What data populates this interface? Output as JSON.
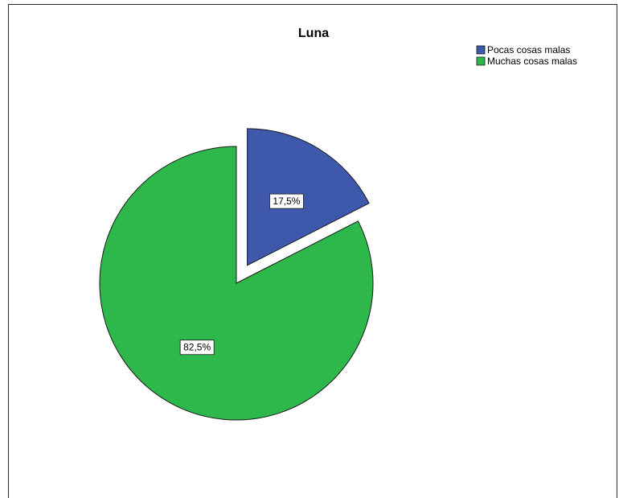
{
  "chart_data": {
    "type": "pie",
    "title": "Luna",
    "legend_position": "top-right",
    "slices": [
      {
        "label": "Pocas cosas malas",
        "value": 17.5,
        "display": "17,5%",
        "color": "#3e58ac",
        "exploded": true
      },
      {
        "label": "Muchas cosas malas",
        "value": 82.5,
        "display": "82,5%",
        "color": "#2eb84b",
        "exploded": false
      }
    ]
  }
}
